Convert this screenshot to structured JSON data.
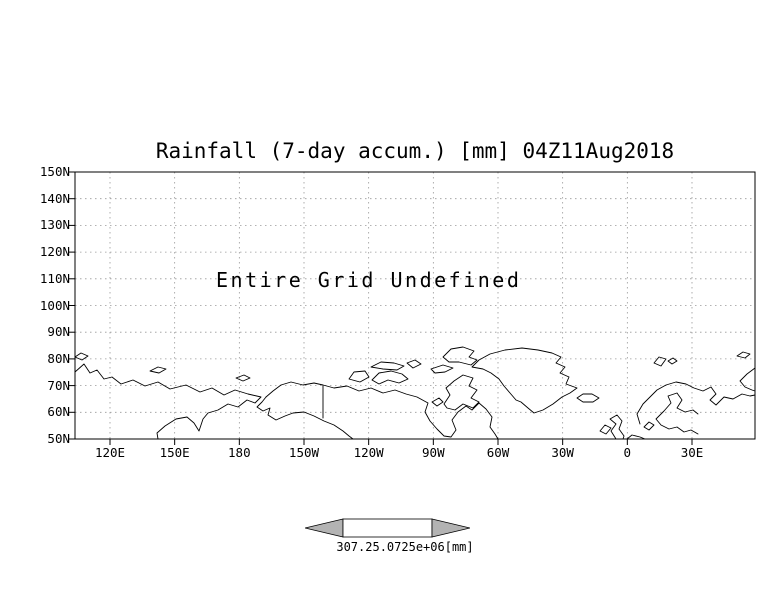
{
  "title": "Rainfall (7-day accum.) [mm] 04Z11Aug2018",
  "plot": {
    "message": "Entire Grid Undefined",
    "y_axis": {
      "labels": [
        "150N",
        "140N",
        "130N",
        "120N",
        "110N",
        "100N",
        "90N",
        "80N",
        "70N",
        "60N",
        "50N"
      ]
    },
    "x_axis": {
      "labels": [
        "120E",
        "150E",
        "180",
        "150W",
        "120W",
        "90W",
        "60W",
        "30W",
        "0",
        "30E"
      ]
    }
  },
  "colorbar": {
    "tick_labels": [
      "307.2",
      "5.0725e+06"
    ],
    "unit": "[mm]",
    "arrow_color": "#b3b3b3",
    "box_color": "#ffffff"
  },
  "chart_data": {
    "type": "heatmap",
    "title": "Rainfall (7-day accum.) [mm] 04Z11Aug2018",
    "annotation": "Entire Grid Undefined",
    "values": null,
    "note": "No data rendered; entire grid is undefined. Basemap coastlines only.",
    "x_tick_labels": [
      "120E",
      "150E",
      "180",
      "150W",
      "120W",
      "90W",
      "60W",
      "30W",
      "0",
      "30E"
    ],
    "y_tick_labels": [
      "150N",
      "140N",
      "130N",
      "120N",
      "110N",
      "100N",
      "90N",
      "80N",
      "70N",
      "60N",
      "50N"
    ],
    "colorbar_ticks": [
      "307.2",
      "5.0725e+06"
    ],
    "colorbar_unit": "[mm]",
    "grid": true,
    "legend_position": "bottom-center"
  }
}
